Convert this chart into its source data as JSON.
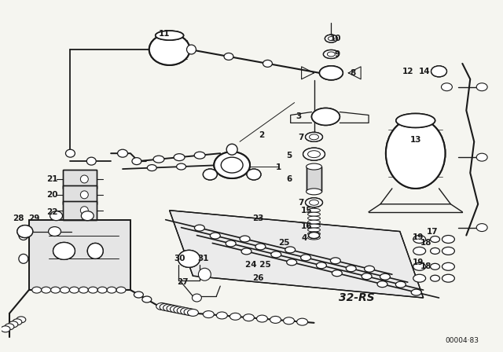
{
  "bg_color": "#f5f5f0",
  "fg_color": "#1a1a1a",
  "fig_width": 6.4,
  "fig_height": 4.48,
  "dpi": 100,
  "watermark": "00004·83",
  "part_code": "32-RS",
  "border_color": "#cccccc"
}
